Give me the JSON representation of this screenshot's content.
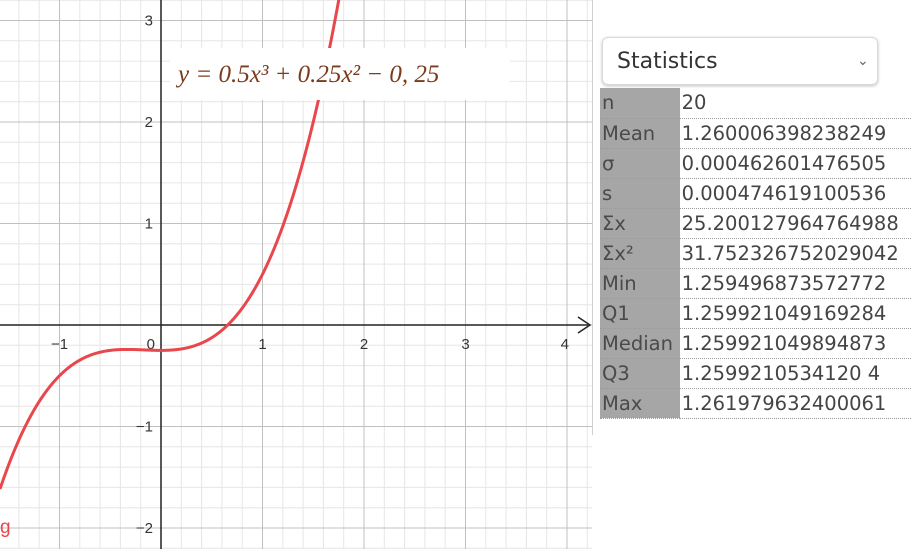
{
  "graph": {
    "formula_label": "y = 0.5x³ + 0.25x² − 0, 25",
    "function_name": "g",
    "curve_color": "#e8474c",
    "label_color": "#7a3b1d",
    "x_ticks": [
      "−1",
      "0",
      "1",
      "2",
      "3",
      "4"
    ],
    "y_ticks": [
      "3",
      "2",
      "1",
      "−1",
      "−2"
    ]
  },
  "chart_data": {
    "type": "line",
    "function": "0.5x^3 + 0.25x^2 - 0.25",
    "xlim": [
      -1.6,
      4.3
    ],
    "ylim": [
      -2.2,
      3.25
    ],
    "series": [
      {
        "name": "g",
        "x": [
          -1.6,
          -1.4,
          -1.2,
          -1.0,
          -0.8,
          -0.6,
          -0.4,
          -0.2,
          0.0,
          0.2,
          0.4,
          0.6,
          0.8,
          1.0,
          1.2,
          1.4,
          1.6,
          1.76
        ],
        "y": [
          -1.658,
          -1.132,
          -0.754,
          -0.5,
          -0.346,
          -0.268,
          -0.242,
          -0.244,
          -0.25,
          -0.236,
          -0.178,
          -0.052,
          0.166,
          0.5,
          0.974,
          1.612,
          2.438,
          3.25
        ]
      }
    ],
    "grid": true
  },
  "stats": {
    "dropdown_value": "Statistics",
    "rows": [
      {
        "label": "n",
        "value": "20"
      },
      {
        "label": "Mean",
        "value": "1.260006398238249"
      },
      {
        "label": "σ",
        "value": "0.000462601476505"
      },
      {
        "label": "s",
        "value": "0.000474619100536"
      },
      {
        "label": "Σx",
        "value": "25.200127964764988"
      },
      {
        "label": "Σx²",
        "value": "31.752326752029042"
      },
      {
        "label": "Min",
        "value": "1.259496873572772"
      },
      {
        "label": "Q1",
        "value": "1.259921049169284"
      },
      {
        "label": "Median",
        "value": "1.259921049894873"
      },
      {
        "label": "Q3",
        "value": "1.2599210534120 4"
      },
      {
        "label": "Max",
        "value": "1.261979632400061"
      }
    ]
  }
}
